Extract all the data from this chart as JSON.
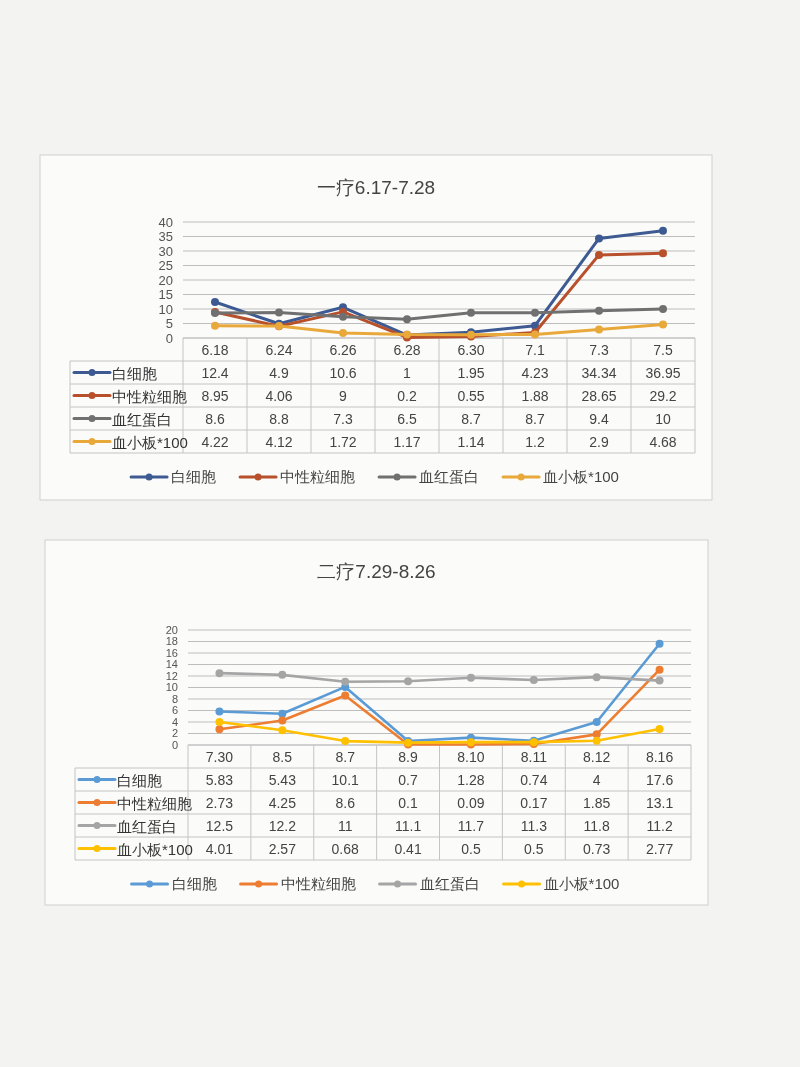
{
  "chart_data": [
    {
      "type": "line",
      "title": "一疗6.17-7.28",
      "categories": [
        "6.18",
        "6.24",
        "6.26",
        "6.28",
        "6.30",
        "7.1",
        "7.3",
        "7.5"
      ],
      "series": [
        {
          "name": "白细胞",
          "color": "#3d5b92",
          "values": [
            12.4,
            4.9,
            10.6,
            1,
            1.95,
            4.23,
            34.34,
            36.95
          ]
        },
        {
          "name": "中性粒细胞",
          "color": "#b8502c",
          "values": [
            8.95,
            4.06,
            9,
            0.2,
            0.55,
            1.88,
            28.65,
            29.2
          ]
        },
        {
          "name": "血红蛋白",
          "color": "#707070",
          "values": [
            8.6,
            8.8,
            7.3,
            6.5,
            8.7,
            8.7,
            9.4,
            10
          ]
        },
        {
          "name": "血小板*100",
          "color": "#e8a83a",
          "values": [
            4.22,
            4.12,
            1.72,
            1.17,
            1.14,
            1.2,
            2.9,
            4.68
          ]
        }
      ],
      "ylim": [
        0,
        40
      ],
      "yticks": [
        0,
        5,
        10,
        15,
        20,
        25,
        30,
        35,
        40
      ],
      "grid": "y",
      "legend": "bottom",
      "marker": "circle",
      "data_labels": true
    },
    {
      "type": "line",
      "title": "二疗7.29-8.26",
      "categories": [
        "7.30",
        "8.5",
        "8.7",
        "8.9",
        "8.10",
        "8.11",
        "8.12",
        "8.16"
      ],
      "series": [
        {
          "name": "白细胞",
          "color": "#5b9bd5",
          "values": [
            5.83,
            5.43,
            10.1,
            0.7,
            1.28,
            0.74,
            4,
            17.6
          ]
        },
        {
          "name": "中性粒细胞",
          "color": "#ed7d31",
          "values": [
            2.73,
            4.25,
            8.6,
            0.1,
            0.09,
            0.17,
            1.85,
            13.1
          ]
        },
        {
          "name": "血红蛋白",
          "color": "#a5a5a5",
          "values": [
            12.5,
            12.2,
            11,
            11.1,
            11.7,
            11.3,
            11.8,
            11.2
          ]
        },
        {
          "name": "血小板*100",
          "color": "#ffc000",
          "values": [
            4.01,
            2.57,
            0.68,
            0.41,
            0.5,
            0.5,
            0.73,
            2.77
          ]
        }
      ],
      "ylim": [
        0,
        20
      ],
      "yticks": [
        0,
        2,
        4,
        6,
        8,
        10,
        12,
        14,
        16,
        18,
        20
      ],
      "grid": "y",
      "legend": "bottom",
      "marker": "circle",
      "data_labels": true
    }
  ]
}
